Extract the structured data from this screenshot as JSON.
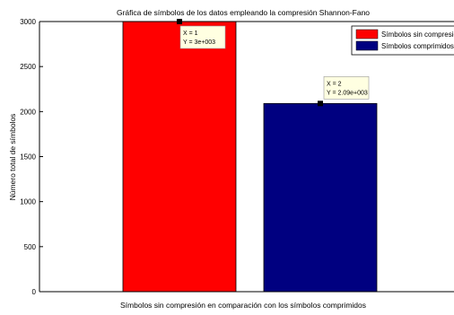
{
  "chart_data": {
    "type": "bar",
    "title": "Gráfica de símbolos de los datos empleando la compresión Shannon-Fano",
    "xlabel": "Símbolos sin compresión en comparación con los símbolos comprimidos",
    "ylabel": "Número total de símbolos",
    "categories": [
      "1",
      "2"
    ],
    "values": [
      3000,
      2090
    ],
    "ylim": [
      0,
      3000
    ],
    "yticks": [
      0,
      500,
      1000,
      1500,
      2000,
      2500,
      3000
    ],
    "grid": false,
    "xtick_labels_visible": false,
    "legend": {
      "position": "top-right",
      "entries": [
        {
          "label": "Símbolos sin compresión",
          "color": "#ff0000"
        },
        {
          "label": "Símbolos comprimidos",
          "color": "#000080"
        }
      ]
    },
    "datatips": [
      {
        "bar": 0,
        "x_text": "X = 1",
        "y_text": "Y = 3e+003"
      },
      {
        "bar": 1,
        "x_text": "X = 2",
        "y_text": "Y = 2.09e+003"
      }
    ],
    "colors": {
      "bar1": "#ff0000",
      "bar2": "#000080",
      "datatip_bg": "#ffffe1",
      "axes": "#000000"
    }
  }
}
